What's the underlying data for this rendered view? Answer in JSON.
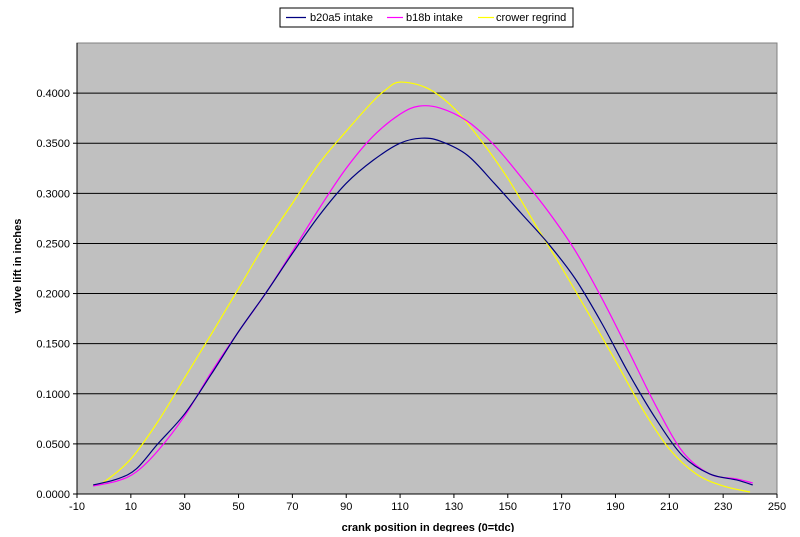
{
  "chart_data": {
    "type": "line",
    "title": "",
    "xlabel": "crank position in degrees (0=tdc)",
    "ylabel": "valve lift in inches",
    "xlim": [
      -10,
      250
    ],
    "ylim": [
      0,
      0.45
    ],
    "x_ticks": [
      -10,
      10,
      30,
      50,
      70,
      90,
      110,
      130,
      150,
      170,
      190,
      210,
      230,
      250
    ],
    "y_ticks": [
      0,
      0.05,
      0.1,
      0.15,
      0.2,
      0.25,
      0.3,
      0.35,
      0.4
    ],
    "x_tick_labels": [
      "-10",
      "10",
      "30",
      "50",
      "70",
      "90",
      "110",
      "130",
      "150",
      "170",
      "190",
      "210",
      "230",
      "250"
    ],
    "y_tick_labels": [
      "0.0000",
      "0.0500",
      "0.1000",
      "0.1500",
      "0.2000",
      "0.2500",
      "0.3000",
      "0.3500",
      "0.4000"
    ],
    "grid": "horizontal",
    "plot_background": "#c0c0c0",
    "legend_position": "top-center",
    "series": [
      {
        "name": "b20a5 intake",
        "color": "#000080",
        "x": [
          -4,
          5,
          12,
          20,
          30,
          40,
          50,
          60,
          70,
          80,
          90,
          100,
          110,
          118,
          125,
          135,
          145,
          155,
          165,
          175,
          185,
          195,
          205,
          215,
          225,
          235,
          241
        ],
        "y": [
          0.009,
          0.015,
          0.025,
          0.05,
          0.08,
          0.12,
          0.162,
          0.2,
          0.24,
          0.278,
          0.31,
          0.333,
          0.35,
          0.355,
          0.352,
          0.338,
          0.31,
          0.28,
          0.25,
          0.215,
          0.17,
          0.12,
          0.075,
          0.038,
          0.02,
          0.014,
          0.009
        ]
      },
      {
        "name": "b18b intake",
        "color": "#ff00ff",
        "x": [
          -4,
          5,
          12,
          20,
          30,
          40,
          50,
          60,
          70,
          80,
          90,
          100,
          110,
          117,
          125,
          135,
          145,
          155,
          165,
          175,
          185,
          195,
          205,
          215,
          225,
          235,
          241
        ],
        "y": [
          0.008,
          0.013,
          0.022,
          0.043,
          0.078,
          0.122,
          0.162,
          0.2,
          0.242,
          0.285,
          0.325,
          0.357,
          0.379,
          0.387,
          0.385,
          0.372,
          0.348,
          0.316,
          0.282,
          0.243,
          0.195,
          0.142,
          0.088,
          0.042,
          0.02,
          0.015,
          0.011
        ]
      },
      {
        "name": "crower regrind",
        "color": "#ffff00",
        "x": [
          -4,
          0,
          10,
          20,
          30,
          40,
          50,
          60,
          70,
          80,
          90,
          100,
          105,
          110,
          120,
          130,
          140,
          150,
          160,
          170,
          180,
          190,
          200,
          210,
          220,
          230,
          240
        ],
        "y": [
          0.009,
          0.012,
          0.035,
          0.072,
          0.116,
          0.16,
          0.205,
          0.25,
          0.29,
          0.33,
          0.362,
          0.392,
          0.404,
          0.411,
          0.405,
          0.385,
          0.353,
          0.315,
          0.27,
          0.226,
          0.18,
          0.133,
          0.085,
          0.045,
          0.02,
          0.008,
          0.002
        ]
      }
    ]
  }
}
